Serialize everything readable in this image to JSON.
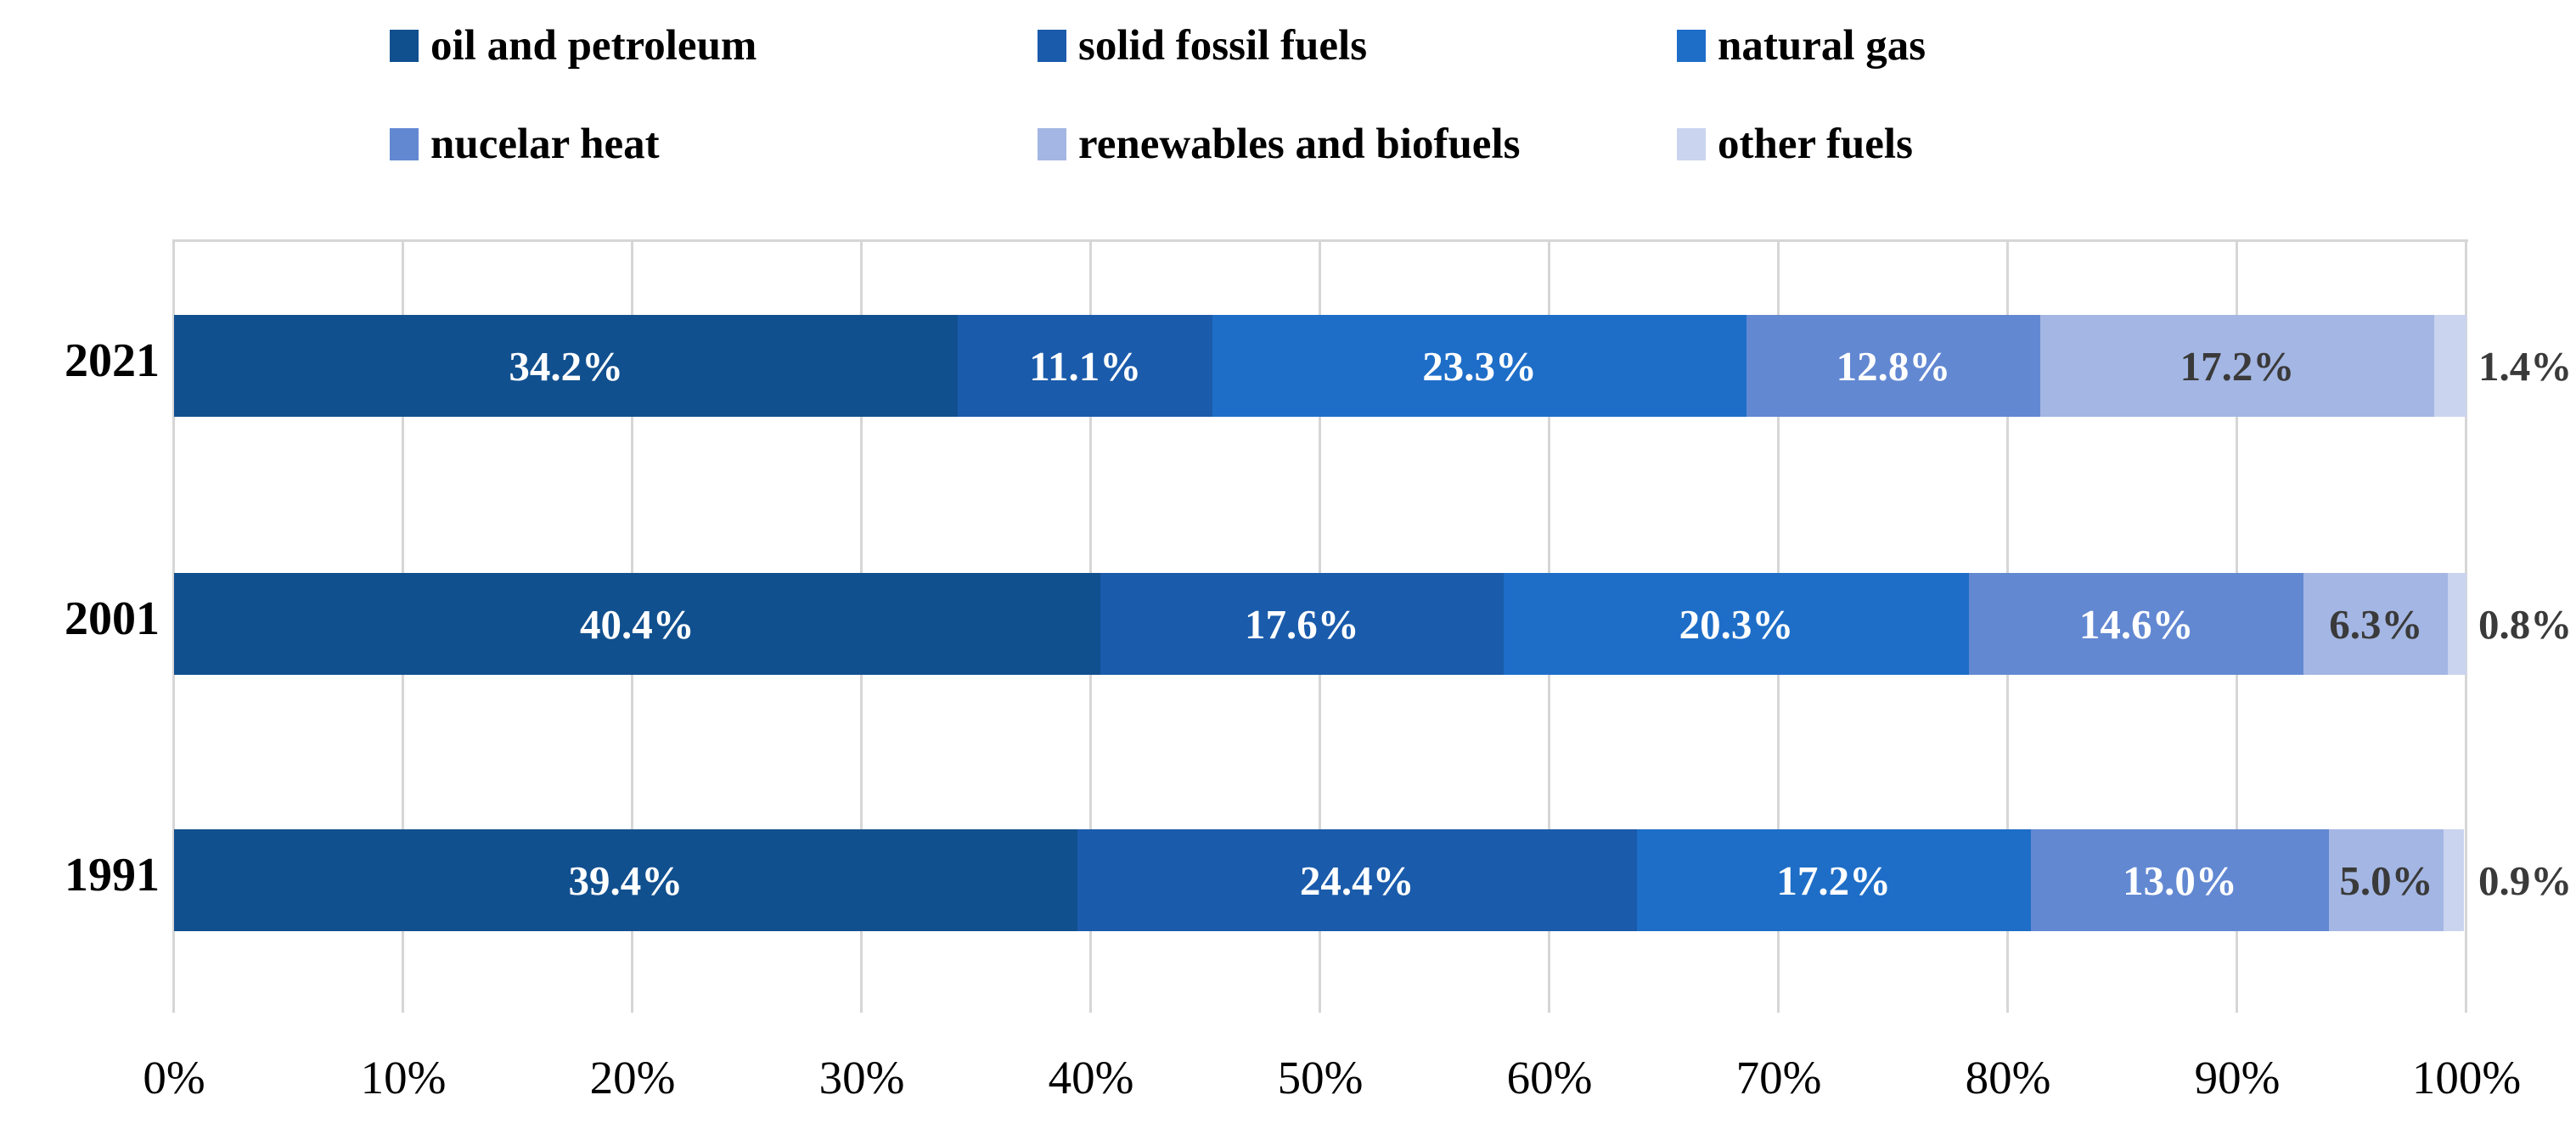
{
  "chart_data": {
    "type": "bar",
    "orientation": "horizontal",
    "stacked": true,
    "grid": true,
    "legend_position": "top",
    "xlim": [
      0,
      100
    ],
    "x_ticks": [
      "0%",
      "10%",
      "20%",
      "30%",
      "40%",
      "50%",
      "60%",
      "70%",
      "80%",
      "90%",
      "100%"
    ],
    "categories": [
      "2021",
      "2001",
      "1991"
    ],
    "series": [
      {
        "name": "oil and petroleum",
        "color": "#11508F",
        "label_style": "inside-white",
        "values": [
          34.2,
          40.4,
          39.4
        ]
      },
      {
        "name": "solid fossil fuels",
        "color": "#1A5BAB",
        "label_style": "inside-white",
        "values": [
          11.1,
          17.6,
          24.4
        ]
      },
      {
        "name": "natural gas",
        "color": "#1E6EC8",
        "label_style": "inside-white",
        "values": [
          23.3,
          20.3,
          17.2
        ]
      },
      {
        "name": "nucelar heat",
        "color": "#6288D2",
        "label_style": "inside-white",
        "values": [
          12.8,
          14.6,
          13.0
        ]
      },
      {
        "name": "renewables and biofuels",
        "color": "#A4B6E3",
        "label_style": "inside-dark",
        "values": [
          17.2,
          6.3,
          5.0
        ]
      },
      {
        "name": "other fuels",
        "color": "#CAD4EF",
        "label_style": "outside-dark",
        "values": [
          1.4,
          0.8,
          0.9
        ]
      }
    ],
    "value_label_suffix": "%",
    "colors": {
      "inside_label": "#FFFFFF",
      "dark_label": "#3A3A3A",
      "grid_line": "#D6D6D6",
      "background": "#FFFFFF"
    }
  }
}
